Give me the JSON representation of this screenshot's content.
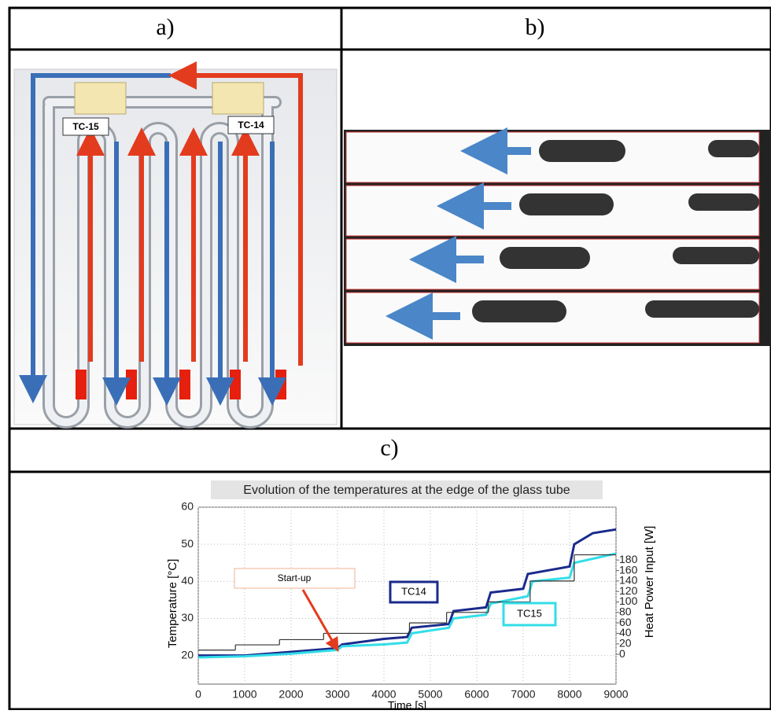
{
  "panels": {
    "a": "a)",
    "b": "b)",
    "c": "c)"
  },
  "diagram": {
    "labels": [
      "TC-15",
      "TC-14"
    ]
  },
  "chart_data": {
    "type": "line",
    "title": "Evolution of the temperatures at the edge of the glass tube",
    "xlabel": "Time [s]",
    "ylabel": "Temperature [°C]",
    "y2label": "Heat Power Input [W]",
    "xlim": [
      0,
      9000
    ],
    "xticks": [
      0,
      1000,
      2000,
      3000,
      4000,
      5000,
      6000,
      7000,
      8000,
      9000
    ],
    "ylim": [
      12.3,
      60
    ],
    "yticks": [
      20,
      30,
      40,
      50,
      60
    ],
    "y2lim": [
      -57,
      281
    ],
    "y2ticks": [
      0,
      20,
      40,
      60,
      80,
      100,
      120,
      140,
      160,
      180
    ],
    "grid": true,
    "series": [
      {
        "name": "TC14",
        "color": "#1a2a8c",
        "x": [
          0,
          1000,
          2000,
          3000,
          3100,
          4000,
          4500,
          4600,
          5000,
          5400,
          5500,
          6200,
          6300,
          7000,
          7100,
          8000,
          8100,
          8500,
          9000
        ],
        "values": [
          20,
          20,
          21,
          22,
          23,
          24.5,
          25,
          27.5,
          28,
          28.5,
          32,
          33,
          37,
          38,
          42,
          44,
          50,
          53,
          54
        ]
      },
      {
        "name": "TC15",
        "color": "#33dde8",
        "x": [
          0,
          1000,
          2000,
          3000,
          3100,
          4000,
          4500,
          4600,
          5400,
          5500,
          6200,
          6300,
          7100,
          7200,
          8000,
          8100,
          9000
        ],
        "values": [
          19.5,
          19.8,
          20.5,
          21.5,
          22.5,
          23,
          23.5,
          26,
          27.5,
          30,
          31,
          34,
          36,
          40,
          41,
          45,
          47.5
        ]
      },
      {
        "color": "#333333",
        "axis": "y2",
        "step": true,
        "x": [
          0,
          800,
          1750,
          2700,
          3600,
          4550,
          5350,
          6250,
          7150,
          8100
        ],
        "values": [
          8,
          18,
          28,
          40,
          40,
          60,
          80,
          100,
          140,
          190
        ]
      }
    ],
    "annotations": [
      {
        "text": "Start-up",
        "x": 3000,
        "y": 22
      }
    ]
  }
}
